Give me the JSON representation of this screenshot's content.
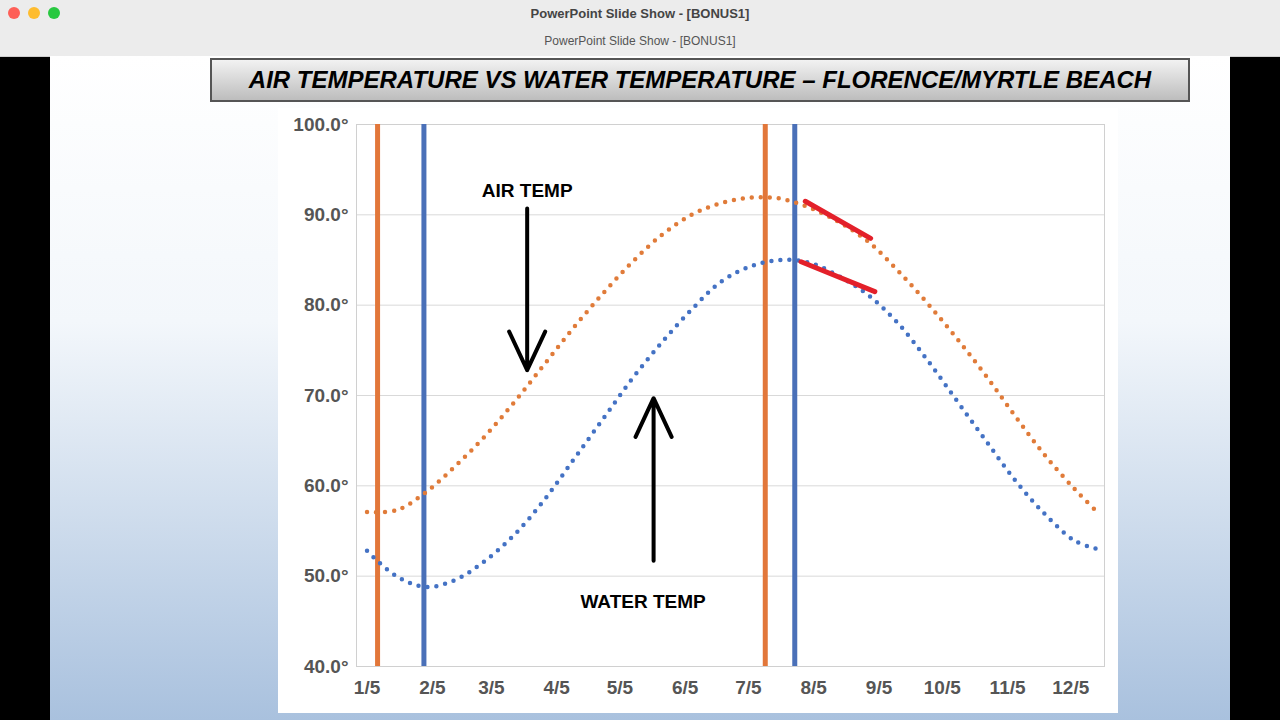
{
  "window": {
    "title": "PowerPoint Slide Show - [BONUS1]",
    "tab": "PowerPoint Slide Show - [BONUS1]"
  },
  "chart_data": {
    "type": "line",
    "title": "AIR TEMPERATURE VS WATER TEMPERATURE – FLORENCE/MYRTLE BEACH",
    "x": [
      5,
      19,
      33,
      47,
      61,
      75,
      89,
      103,
      117,
      131,
      145,
      159,
      173,
      187,
      201,
      215,
      229,
      243,
      257,
      271,
      285,
      299,
      313,
      327,
      341,
      352
    ],
    "series": [
      {
        "name": "AIR TEMP",
        "color": "#e07b39",
        "line_style": "dotted",
        "values": [
          57.1,
          57.3,
          59.3,
          62.2,
          65.5,
          69.3,
          73.4,
          77.5,
          81.3,
          84.8,
          87.8,
          90.0,
          91.3,
          91.9,
          91.8,
          90.8,
          89.2,
          87.0,
          83.8,
          80.2,
          76.3,
          72.1,
          67.6,
          63.3,
          59.6,
          57.0
        ],
        "label_x": 81,
        "label_y": 92.7,
        "arrow_from": [
          81,
          90.7
        ],
        "arrow_to": [
          81,
          72.8
        ]
      },
      {
        "name": "WATER TEMP",
        "color": "#4472c4",
        "line_style": "dotted",
        "values": [
          52.8,
          50.0,
          48.8,
          49.6,
          51.7,
          54.6,
          58.4,
          62.9,
          67.4,
          71.9,
          75.9,
          79.5,
          82.6,
          84.3,
          85.0,
          84.7,
          83.2,
          81.1,
          78.0,
          73.9,
          69.4,
          64.9,
          60.5,
          56.8,
          53.9,
          53.0
        ],
        "label_x": 136,
        "label_y": 47.1,
        "arrow_from": [
          141,
          51.7
        ],
        "arrow_to": [
          141,
          69.7
        ]
      }
    ],
    "vlines": [
      {
        "x": 10,
        "color": "#e2773a"
      },
      {
        "x": 32,
        "color": "#4a70b8"
      },
      {
        "x": 194,
        "color": "#e2773a"
      },
      {
        "x": 208,
        "color": "#4a70b8"
      }
    ],
    "segments": [
      {
        "x1": 213,
        "y1": 91.5,
        "x2": 244,
        "y2": 87.4,
        "color": "#e3202a"
      },
      {
        "x1": 211,
        "y1": 84.8,
        "x2": 246,
        "y2": 81.5,
        "color": "#e3202a"
      }
    ],
    "xlim": [
      0,
      355
    ],
    "xticks": [
      {
        "value": 5,
        "label": "1/5"
      },
      {
        "value": 36,
        "label": "2/5"
      },
      {
        "value": 64,
        "label": "3/5"
      },
      {
        "value": 95,
        "label": "4/5"
      },
      {
        "value": 125,
        "label": "5/5"
      },
      {
        "value": 156,
        "label": "6/5"
      },
      {
        "value": 186,
        "label": "7/5"
      },
      {
        "value": 217,
        "label": "8/5"
      },
      {
        "value": 248,
        "label": "9/5"
      },
      {
        "value": 278,
        "label": "10/5"
      },
      {
        "value": 309,
        "label": "11/5"
      },
      {
        "value": 339,
        "label": "12/5"
      }
    ],
    "ylim": [
      40,
      100
    ],
    "yticks": [
      {
        "value": 40,
        "label": "40.0°"
      },
      {
        "value": 50,
        "label": "50.0°"
      },
      {
        "value": 60,
        "label": "60.0°"
      },
      {
        "value": 70,
        "label": "70.0°"
      },
      {
        "value": 80,
        "label": "80.0°"
      },
      {
        "value": 90,
        "label": "90.0°"
      },
      {
        "value": 100,
        "label": "100.0°"
      }
    ],
    "grid": true
  }
}
